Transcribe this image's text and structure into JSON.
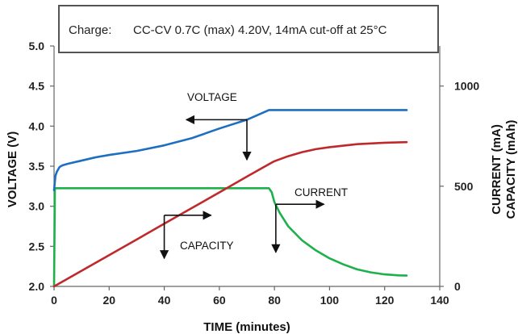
{
  "chart_data": {
    "type": "line",
    "charge_label": "Charge:",
    "charge_condition": "CC-CV 0.7C (max) 4.20V, 14mA cut-off at 25°C",
    "xlabel": "TIME (minutes)",
    "ylabel_left": "VOLTAGE (V)",
    "ylabel_right_1": "CURRENT (mA)",
    "ylabel_right_2": "CAPACITY (mAh)",
    "xlim": [
      0,
      140
    ],
    "ylim_left": [
      2.0,
      5.0
    ],
    "ylim_right": [
      0,
      1200
    ],
    "x_ticks": [
      "0",
      "20",
      "40",
      "60",
      "80",
      "100",
      "120",
      "140"
    ],
    "y_left_ticks": [
      "2.0",
      "2.5",
      "3.0",
      "3.5",
      "4.0",
      "4.5",
      "5.0"
    ],
    "y_right_ticks": [
      "0",
      "500",
      "1000"
    ],
    "annotations": {
      "voltage": "VOLTAGE",
      "current": "CURRENT",
      "capacity": "CAPACITY"
    },
    "colors": {
      "voltage": "#1f6fc1",
      "current": "#1db14b",
      "capacity": "#c0292b"
    },
    "series": [
      {
        "key": "voltage",
        "axis": "left",
        "x": [
          0,
          0.5,
          1,
          2,
          3,
          5,
          10,
          15,
          20,
          30,
          40,
          50,
          60,
          70,
          78,
          80,
          90,
          100,
          110,
          120,
          128
        ],
        "y": [
          3.2,
          3.38,
          3.43,
          3.49,
          3.51,
          3.53,
          3.57,
          3.61,
          3.64,
          3.69,
          3.76,
          3.85,
          3.97,
          4.08,
          4.2,
          4.2,
          4.2,
          4.2,
          4.2,
          4.2,
          4.2
        ]
      },
      {
        "key": "current",
        "axis": "right",
        "x": [
          0,
          0.3,
          0.6,
          78,
          79,
          80,
          82,
          85,
          90,
          95,
          100,
          105,
          110,
          115,
          120,
          125,
          128
        ],
        "y": [
          0,
          490,
          490,
          490,
          470,
          420,
          365,
          300,
          230,
          180,
          140,
          110,
          85,
          70,
          60,
          55,
          54
        ]
      },
      {
        "key": "capacity",
        "axis": "right",
        "x": [
          0,
          10,
          20,
          30,
          40,
          50,
          60,
          70,
          78,
          80,
          85,
          90,
          95,
          100,
          110,
          120,
          128
        ],
        "y": [
          0,
          78,
          156,
          234,
          313,
          391,
          469,
          548,
          610,
          625,
          650,
          670,
          685,
          695,
          710,
          717,
          720
        ]
      }
    ]
  }
}
